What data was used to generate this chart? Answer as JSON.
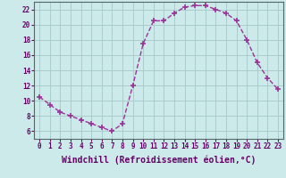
{
  "x": [
    0,
    1,
    2,
    3,
    4,
    5,
    6,
    7,
    8,
    9,
    10,
    11,
    12,
    13,
    14,
    15,
    16,
    17,
    18,
    19,
    20,
    21,
    22,
    23
  ],
  "y": [
    10.5,
    9.5,
    8.5,
    8.0,
    7.5,
    7.0,
    6.5,
    6.0,
    7.0,
    12.0,
    17.5,
    20.5,
    20.5,
    21.5,
    22.3,
    22.5,
    22.5,
    22.0,
    21.5,
    20.5,
    18.0,
    15.0,
    13.0,
    11.5
  ],
  "line_color": "#993399",
  "marker": "+",
  "markersize": 4,
  "linewidth": 1.0,
  "xlabel": "Windchill (Refroidissement éolien,°C)",
  "xlim": [
    -0.5,
    23.5
  ],
  "ylim": [
    5.0,
    23.0
  ],
  "yticks": [
    6,
    8,
    10,
    12,
    14,
    16,
    18,
    20,
    22
  ],
  "xticks": [
    0,
    1,
    2,
    3,
    4,
    5,
    6,
    7,
    8,
    9,
    10,
    11,
    12,
    13,
    14,
    15,
    16,
    17,
    18,
    19,
    20,
    21,
    22,
    23
  ],
  "bg_color": "#cceaea",
  "grid_color": "#aacccc",
  "tick_color": "#660066",
  "tick_fontsize": 5.5,
  "xlabel_fontsize": 7.0,
  "markeredgewidth": 1.2
}
